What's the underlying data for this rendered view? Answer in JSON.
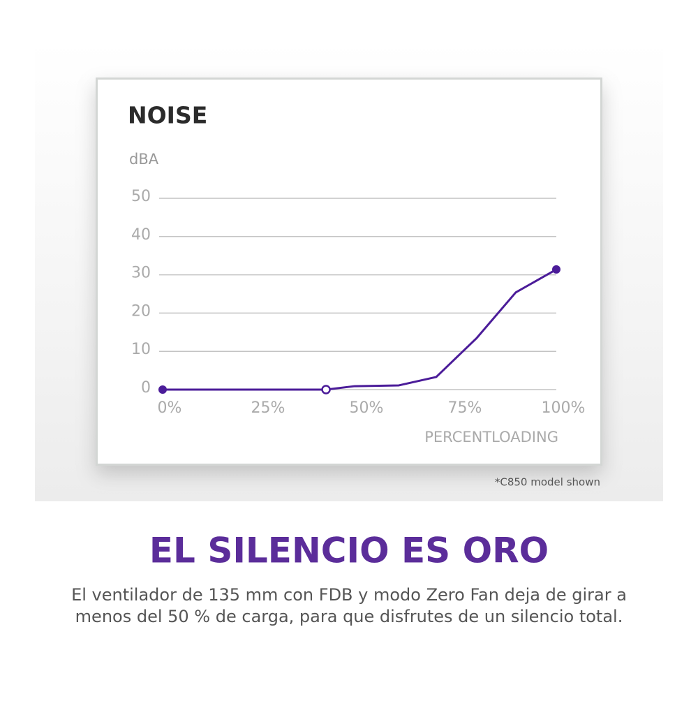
{
  "chart_data": {
    "type": "line",
    "title": "NOISE",
    "ylabel": "dBA",
    "xlabel": "PERCENTLOADING",
    "x": [
      0,
      41.5,
      48.8,
      60,
      69.5,
      79.8,
      89.7,
      100
    ],
    "series": [
      {
        "color": "#4b1c99",
        "values": [
          0,
          0,
          0.9,
          1.1,
          3.3,
          13.5,
          25.4,
          31.4
        ]
      }
    ],
    "markers": [
      {
        "index": 0,
        "style": "filled"
      },
      {
        "index": 1,
        "style": "hollow"
      },
      {
        "index": 7,
        "style": "filled"
      }
    ],
    "xlim": [
      0,
      100
    ],
    "ylim": [
      0,
      50
    ],
    "xticks": [
      {
        "value": 0,
        "label": "0%"
      },
      {
        "value": 25,
        "label": "25%"
      },
      {
        "value": 50,
        "label": "50%"
      },
      {
        "value": 75,
        "label": "75%"
      },
      {
        "value": 100,
        "label": "100%"
      }
    ],
    "yticks": [
      0,
      10,
      20,
      30,
      40,
      50
    ],
    "grid": true
  },
  "footnote": "*C850 model shown",
  "headline": "EL SILENCIO ES ORO",
  "body": [
    "El ventilador de 135 mm con FDB y modo Zero Fan deja de girar a",
    "menos del 50 % de carga, para que disfrutes de un silencio total."
  ]
}
